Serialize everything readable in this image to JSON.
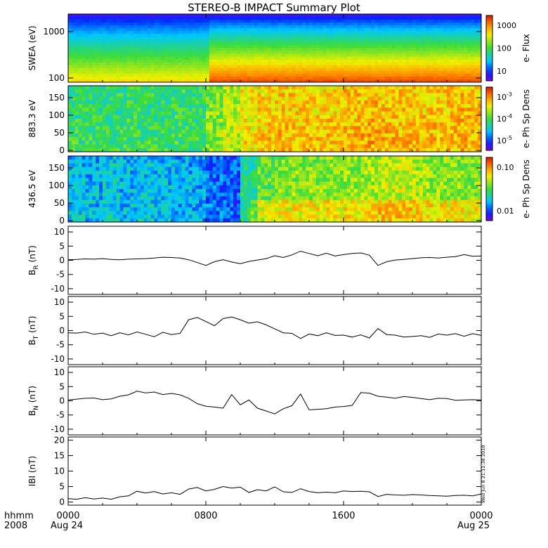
{
  "title": "STEREO-B IMPACT Summary Plot",
  "footer": {
    "time_label": "hhmm",
    "year": "2008",
    "start_date": "Aug 24",
    "end_date": "Aug 25"
  },
  "timestamp": "Wed Jun 8 21:11:38 2010",
  "chart_data": [
    {
      "type": "heatmap",
      "ylabel": "SWEA (eV)",
      "ylog": true,
      "yticks": [
        "1000",
        "100"
      ],
      "colorbar_label": "e- Flux",
      "colorbar_ticks": [
        "1000",
        "100",
        "10"
      ],
      "colorbar_log_range": [
        0.4,
        3.7
      ],
      "description_levels": [
        {
          "x_hours": [
            0,
            8.3
          ],
          "low_energy_level": 0.72
        },
        {
          "x_hours": [
            8.3,
            24
          ],
          "low_energy_level": 0.92
        }
      ]
    },
    {
      "type": "heatmap",
      "ylabel": "883.3 eV",
      "ylim": [
        0,
        180
      ],
      "yticks": [
        "0",
        "50",
        "100",
        "150"
      ],
      "colorbar_label": "e- Ph Sp Dens",
      "colorbar_ticks": [
        "10^-3",
        "10^-4",
        "10^-5"
      ],
      "colorbar_log_range": [
        -5.6,
        -2.8
      ],
      "mean_level": [
        0.45,
        0.45,
        0.44,
        0.46,
        0.45,
        0.44,
        0.46,
        0.45,
        0.55,
        0.62,
        0.7,
        0.74,
        0.75,
        0.74,
        0.73,
        0.74,
        0.76,
        0.77,
        0.76,
        0.75,
        0.74,
        0.75,
        0.76,
        0.76
      ]
    },
    {
      "type": "heatmap",
      "ylabel": "436.5 eV",
      "ylim": [
        0,
        180
      ],
      "yticks": [
        "0",
        "50",
        "100",
        "150"
      ],
      "colorbar_label": "e- Ph Sp Dens",
      "colorbar_ticks": [
        "0.10",
        "0.01"
      ],
      "colorbar_log_range": [
        -2.3,
        -1.0
      ],
      "mean_level": [
        0.3,
        0.27,
        0.32,
        0.28,
        0.31,
        0.29,
        0.27,
        0.26,
        0.18,
        0.17,
        0.4,
        0.52,
        0.56,
        0.57,
        0.56,
        0.57,
        0.58,
        0.6,
        0.62,
        0.63,
        0.6,
        0.58,
        0.57,
        0.56
      ]
    },
    {
      "type": "line",
      "ylabel": "B_R (nT)",
      "ylabel_main": "B",
      "ylabel_sub": "R",
      "ylabel_unit": " (nT)",
      "ylim": [
        -12,
        12
      ],
      "yticks": [
        "10",
        "5",
        "0",
        "-5",
        "-10"
      ],
      "x_hours": [
        0,
        0.5,
        1,
        1.5,
        2,
        2.5,
        3,
        3.5,
        4,
        4.5,
        5,
        5.5,
        6,
        6.5,
        7,
        7.5,
        8,
        8.5,
        9,
        9.5,
        10,
        10.5,
        11,
        11.5,
        12,
        12.5,
        13,
        13.5,
        14,
        14.5,
        15,
        15.5,
        16,
        16.5,
        17,
        17.5,
        18,
        18.5,
        19,
        19.5,
        20,
        20.5,
        21,
        21.5,
        22,
        22.5,
        23,
        23.5,
        24
      ],
      "values": [
        0.2,
        0.3,
        0.5,
        0.4,
        0.6,
        0.3,
        0.2,
        0.4,
        0.5,
        0.6,
        0.8,
        1.1,
        1.0,
        0.8,
        0.2,
        -0.8,
        -1.8,
        -0.5,
        0.2,
        -0.6,
        -1.2,
        -0.4,
        0.1,
        0.6,
        1.6,
        1.0,
        1.9,
        3.2,
        2.4,
        1.6,
        2.5,
        1.5,
        2.0,
        2.4,
        2.6,
        1.8,
        -1.8,
        -0.5,
        0.1,
        0.3,
        0.6,
        0.9,
        1.0,
        0.8,
        1.1,
        1.3,
        2.0,
        1.4,
        1.5
      ]
    },
    {
      "type": "line",
      "ylabel": "B_T (nT)",
      "ylabel_main": "B",
      "ylabel_sub": "T",
      "ylabel_unit": " (nT)",
      "ylim": [
        -12,
        12
      ],
      "yticks": [
        "10",
        "5",
        "0",
        "-5",
        "-10"
      ],
      "x_hours": [
        0,
        0.5,
        1,
        1.5,
        2,
        2.5,
        3,
        3.5,
        4,
        4.5,
        5,
        5.5,
        6,
        6.5,
        7,
        7.5,
        8,
        8.5,
        9,
        9.5,
        10,
        10.5,
        11,
        11.5,
        12,
        12.5,
        13,
        13.5,
        14,
        14.5,
        15,
        15.5,
        16,
        16.5,
        17,
        17.5,
        18,
        18.5,
        19,
        19.5,
        20,
        20.5,
        21,
        21.5,
        22,
        22.5,
        23,
        23.5,
        24
      ],
      "values": [
        -0.8,
        -0.9,
        -0.5,
        -1.3,
        -0.9,
        -1.8,
        -0.8,
        -1.5,
        -0.5,
        -1.3,
        -2.2,
        -0.6,
        -1.4,
        -1.0,
        3.8,
        4.6,
        3.2,
        1.7,
        4.2,
        4.8,
        3.8,
        2.6,
        3.1,
        2.0,
        0.6,
        -0.8,
        -1.0,
        -2.8,
        -1.2,
        -1.8,
        -0.8,
        -1.7,
        -1.6,
        -2.3,
        -1.5,
        -2.6,
        0.7,
        -1.4,
        -1.6,
        -2.3,
        -2.1,
        -1.8,
        -2.4,
        -1.2,
        -1.6,
        -1.1,
        -2.0,
        -1.1,
        -1.7
      ]
    },
    {
      "type": "line",
      "ylabel": "B_N (nT)",
      "ylabel_main": "B",
      "ylabel_sub": "N",
      "ylabel_unit": " (nT)",
      "ylim": [
        -12,
        12
      ],
      "yticks": [
        "10",
        "5",
        "0",
        "-5",
        "-10"
      ],
      "x_hours": [
        0,
        0.5,
        1,
        1.5,
        2,
        2.5,
        3,
        3.5,
        4,
        4.5,
        5,
        5.5,
        6,
        6.5,
        7,
        7.5,
        8,
        8.5,
        9,
        9.5,
        10,
        10.5,
        11,
        11.5,
        12,
        12.5,
        13,
        13.5,
        14,
        14.5,
        15,
        15.5,
        16,
        16.5,
        17,
        17.5,
        18,
        18.5,
        19,
        19.5,
        20,
        20.5,
        21,
        21.5,
        22,
        22.5,
        23,
        23.5,
        24
      ],
      "values": [
        0.3,
        0.6,
        0.9,
        1.0,
        0.4,
        0.7,
        1.6,
        2.1,
        3.4,
        2.8,
        3.1,
        2.2,
        2.6,
        2.1,
        0.9,
        -1.0,
        -1.9,
        -2.2,
        -2.6,
        2.2,
        -1.4,
        0.3,
        -2.6,
        -3.6,
        -4.6,
        -2.8,
        -1.7,
        2.4,
        -3.2,
        -3.0,
        -2.8,
        -2.2,
        -2.0,
        -1.6,
        2.9,
        2.7,
        1.6,
        1.3,
        0.9,
        1.5,
        1.2,
        0.8,
        0.4,
        0.9,
        0.8,
        0.2,
        0.3,
        0.4,
        0.3
      ]
    },
    {
      "type": "line",
      "ylabel": "|B| (nT)",
      "ylabel_main": "IBI",
      "ylabel_sub": "",
      "ylabel_unit": " (nT)",
      "ylim": [
        -1,
        21
      ],
      "yticks": [
        "20",
        "15",
        "10",
        "5",
        "0"
      ],
      "x_hours": [
        0,
        0.5,
        1,
        1.5,
        2,
        2.5,
        3,
        3.5,
        4,
        4.5,
        5,
        5.5,
        6,
        6.5,
        7,
        7.5,
        8,
        8.5,
        9,
        9.5,
        10,
        10.5,
        11,
        11.5,
        12,
        12.5,
        13,
        13.5,
        14,
        14.5,
        15,
        15.5,
        16,
        16.5,
        17,
        17.5,
        18,
        18.5,
        19,
        19.5,
        20,
        20.5,
        21,
        21.5,
        22,
        22.5,
        23,
        23.5,
        24
      ],
      "values": [
        1.1,
        0.9,
        1.4,
        1.0,
        1.3,
        0.9,
        1.7,
        2.0,
        3.5,
        2.9,
        3.4,
        2.6,
        3.0,
        2.5,
        4.2,
        4.7,
        3.6,
        4.1,
        5.0,
        4.5,
        4.8,
        3.1,
        4.0,
        3.6,
        4.9,
        3.3,
        3.1,
        4.3,
        3.4,
        3.0,
        3.2,
        3.0,
        3.6,
        3.4,
        3.5,
        3.3,
        1.8,
        2.5,
        2.3,
        2.2,
        2.4,
        2.3,
        2.1,
        2.0,
        1.9,
        2.1,
        2.2,
        2.0,
        2.6
      ]
    }
  ],
  "x_axis": {
    "range_hours": [
      0,
      24
    ],
    "ticks": [
      {
        "hour": 0,
        "label": "0000"
      },
      {
        "hour": 8,
        "label": "0800"
      },
      {
        "hour": 16,
        "label": "1600"
      },
      {
        "hour": 24,
        "label": "0000"
      }
    ]
  }
}
